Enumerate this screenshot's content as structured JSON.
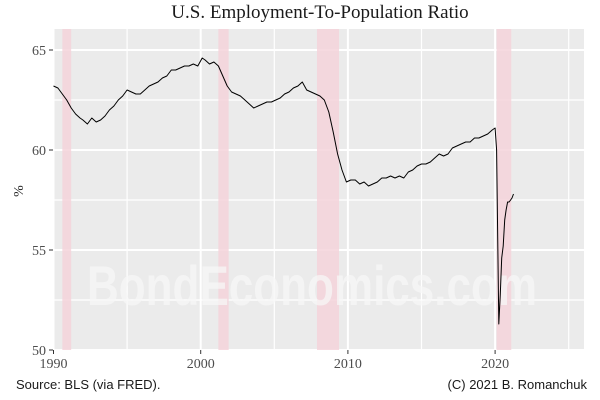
{
  "title": "U.S. Employment-To-Population Ratio",
  "ylabel": "%",
  "caption_left": "Source: BLS (via FRED).",
  "caption_right": "(C) 2021 B. Romanchuk",
  "watermark": "BondEconomics.com",
  "colors": {
    "panel": "#ebebeb",
    "grid": "#ffffff",
    "recession": "#f4d3da",
    "line": "#000000"
  },
  "chart_data": {
    "type": "line",
    "title": "U.S. Employment-To-Population Ratio",
    "xlabel": "",
    "ylabel": "%",
    "xlim": [
      1990,
      2025.8
    ],
    "ylim": [
      50,
      66.1
    ],
    "x_ticks": [
      1990,
      2000,
      2010,
      2020
    ],
    "x_tick_labels": [
      "1990",
      "2000",
      "2010",
      "2020"
    ],
    "y_ticks": [
      50,
      55,
      60,
      65
    ],
    "y_tick_labels": [
      "50",
      "55",
      "60",
      "65"
    ],
    "grid": true,
    "recession_bands": [
      [
        1990.6,
        1991.2
      ],
      [
        2001.2,
        2001.9
      ],
      [
        2007.9,
        2009.4
      ],
      [
        2020.1,
        2021.1
      ]
    ],
    "series": [
      {
        "name": "Employment-To-Population Ratio",
        "x": [
          1990.0,
          1990.3,
          1990.6,
          1990.9,
          1991.2,
          1991.5,
          1991.8,
          1992.0,
          1992.3,
          1992.6,
          1992.9,
          1993.2,
          1993.5,
          1993.8,
          1994.1,
          1994.4,
          1994.7,
          1995.0,
          1995.3,
          1995.6,
          1995.9,
          1996.2,
          1996.5,
          1996.8,
          1997.1,
          1997.4,
          1997.7,
          1998.0,
          1998.3,
          1998.6,
          1998.9,
          1999.2,
          1999.5,
          1999.8,
          2000.1,
          2000.3,
          2000.6,
          2000.9,
          2001.2,
          2001.5,
          2001.8,
          2002.1,
          2002.4,
          2002.7,
          2003.0,
          2003.3,
          2003.6,
          2003.9,
          2004.2,
          2004.5,
          2004.8,
          2005.1,
          2005.4,
          2005.7,
          2006.0,
          2006.3,
          2006.6,
          2006.9,
          2007.2,
          2007.5,
          2007.8,
          2008.1,
          2008.4,
          2008.7,
          2009.0,
          2009.3,
          2009.6,
          2009.9,
          2010.2,
          2010.5,
          2010.8,
          2011.1,
          2011.4,
          2011.7,
          2012.0,
          2012.3,
          2012.6,
          2012.9,
          2013.2,
          2013.5,
          2013.8,
          2014.1,
          2014.4,
          2014.7,
          2015.0,
          2015.3,
          2015.6,
          2015.9,
          2016.2,
          2016.5,
          2016.8,
          2017.1,
          2017.4,
          2017.7,
          2018.0,
          2018.3,
          2018.6,
          2018.9,
          2019.2,
          2019.5,
          2019.8,
          2020.0,
          2020.1,
          2020.25,
          2020.35,
          2020.45,
          2020.55,
          2020.65,
          2020.75,
          2020.85,
          2020.95,
          2021.05,
          2021.15,
          2021.25
        ],
        "y": [
          63.2,
          63.1,
          62.8,
          62.5,
          62.1,
          61.8,
          61.6,
          61.5,
          61.3,
          61.6,
          61.4,
          61.5,
          61.7,
          62.0,
          62.2,
          62.5,
          62.7,
          63.0,
          62.9,
          62.8,
          62.8,
          63.0,
          63.2,
          63.3,
          63.4,
          63.6,
          63.7,
          64.0,
          64.0,
          64.1,
          64.2,
          64.2,
          64.3,
          64.2,
          64.6,
          64.5,
          64.3,
          64.4,
          64.2,
          63.7,
          63.2,
          62.9,
          62.8,
          62.7,
          62.5,
          62.3,
          62.1,
          62.2,
          62.3,
          62.4,
          62.4,
          62.5,
          62.6,
          62.8,
          62.9,
          63.1,
          63.2,
          63.4,
          63.0,
          62.9,
          62.8,
          62.7,
          62.5,
          61.9,
          60.9,
          59.8,
          59.0,
          58.4,
          58.5,
          58.5,
          58.3,
          58.4,
          58.2,
          58.3,
          58.4,
          58.6,
          58.6,
          58.7,
          58.6,
          58.7,
          58.6,
          58.9,
          59.0,
          59.2,
          59.3,
          59.3,
          59.4,
          59.6,
          59.8,
          59.7,
          59.8,
          60.1,
          60.2,
          60.3,
          60.4,
          60.4,
          60.6,
          60.6,
          60.7,
          60.8,
          61.0,
          61.1,
          60.0,
          51.3,
          52.8,
          54.6,
          55.2,
          56.5,
          57.0,
          57.4,
          57.4,
          57.5,
          57.6,
          57.8
        ]
      }
    ]
  }
}
